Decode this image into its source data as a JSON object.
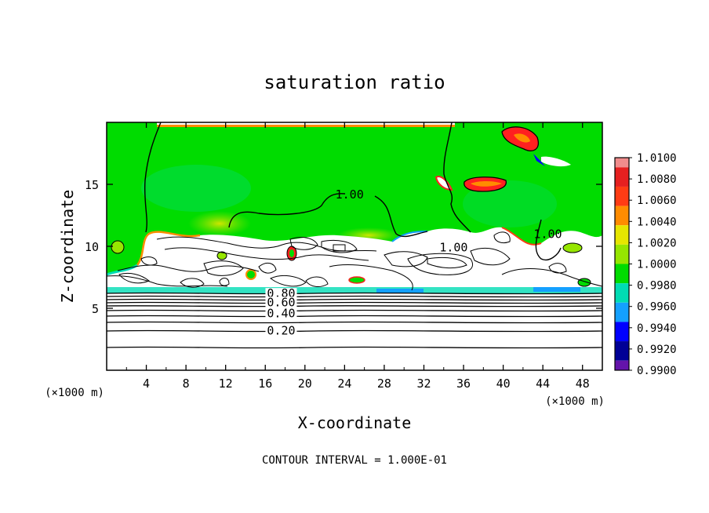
{
  "chart_data": {
    "type": "heatmap",
    "title": "saturation ratio",
    "xlabel": "X-coordinate",
    "ylabel": "Z-coordinate",
    "x_unit": "(×1000 m)",
    "x_unit_right": "(×1000 m)",
    "xlim": [
      0,
      50
    ],
    "ylim": [
      0,
      20
    ],
    "x_ticks": [
      4,
      8,
      12,
      16,
      20,
      24,
      28,
      32,
      36,
      40,
      44,
      48
    ],
    "y_ticks": [
      5,
      10,
      15
    ],
    "footer": "CONTOUR INTERVAL = 1.000E-01",
    "colorbar": {
      "levels": [
        "1.0100",
        "1.0080",
        "1.0060",
        "1.0040",
        "1.0020",
        "1.0000",
        "0.9980",
        "0.9960",
        "0.9940",
        "0.9920",
        "0.9900"
      ],
      "colors": [
        "#f08c8c",
        "#e62020",
        "#ff3c14",
        "#ff8c00",
        "#e6e600",
        "#96e600",
        "#00dc00",
        "#00dcb4",
        "#14a0ff",
        "#0000ff",
        "#000096",
        "#6414aa"
      ]
    },
    "contour_labels": [
      {
        "text": "1.00",
        "x": 24.5,
        "y": 14.0
      },
      {
        "text": "1.00",
        "x": 35.0,
        "y": 9.7
      },
      {
        "text": "1.00",
        "x": 44.5,
        "y": 10.8
      },
      {
        "text": "0.80",
        "x": 17.6,
        "y": 6.0
      },
      {
        "text": "0.60",
        "x": 17.6,
        "y": 5.3
      },
      {
        "text": "0.40",
        "x": 17.6,
        "y": 4.4
      },
      {
        "text": "0.20",
        "x": 17.6,
        "y": 3.0
      }
    ]
  }
}
